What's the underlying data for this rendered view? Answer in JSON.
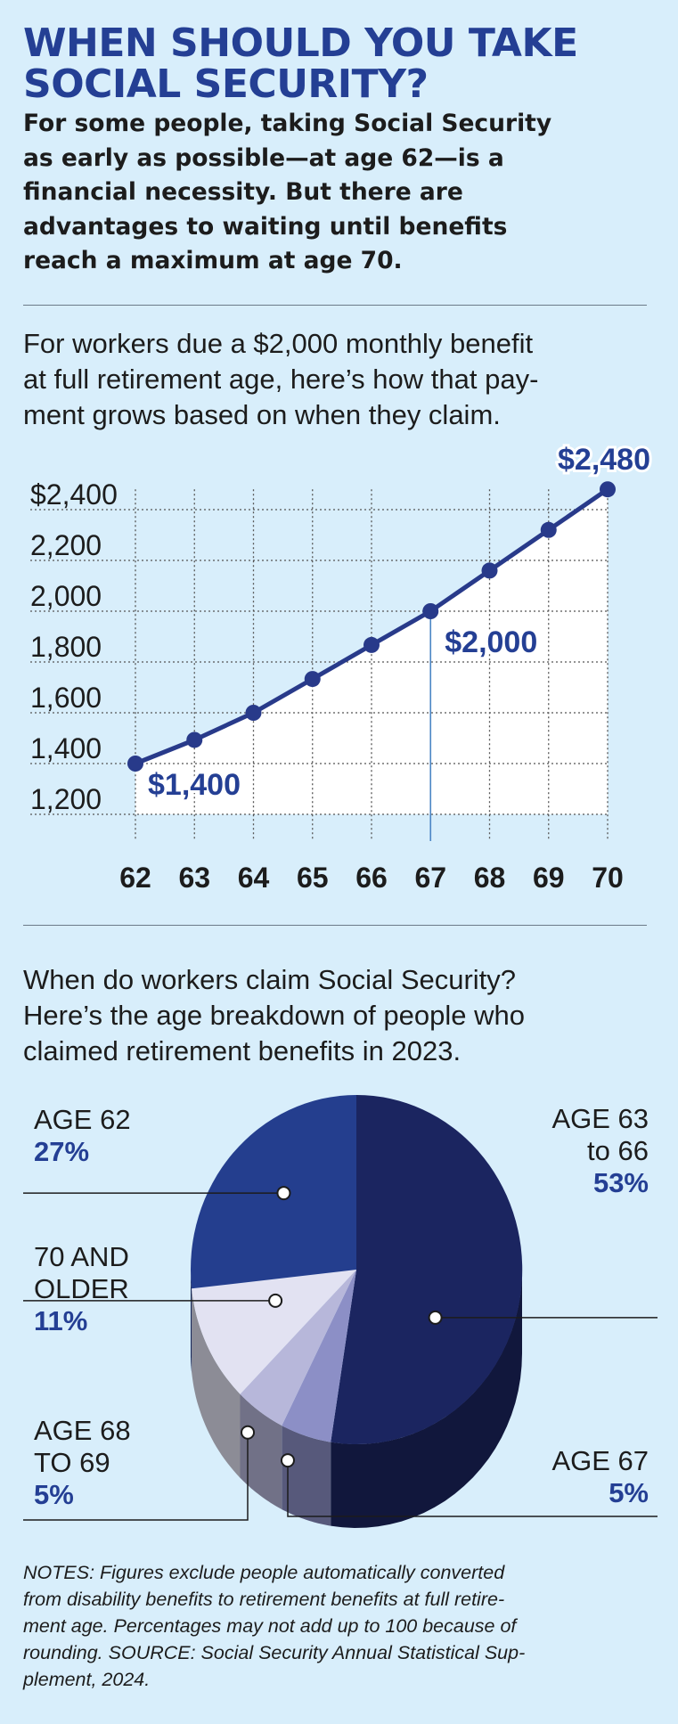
{
  "header": {
    "title_lines": [
      "WHEN SHOULD YOU TAKE",
      "SOCIAL SECURITY?"
    ],
    "dek_lines": [
      "For some people, taking Social Security",
      "as early as possible—at age 62—is a",
      "financial necessity. But there are",
      "advantages to waiting until benefits",
      "reach a maximum at age 70."
    ]
  },
  "line_intro_lines": [
    "For workers due a $2,000 monthly benefit",
    "at full retirement age, here’s how that pay-",
    "ment grows based on when they claim."
  ],
  "pie_intro_lines": [
    "When do workers claim Social Security?",
    "Here’s the age breakdown of people who",
    "claimed retirement benefits in 2023."
  ],
  "notes_lines": [
    "NOTES: Figures exclude people automatically converted",
    "from disability benefits to retirement benefits at full retire-",
    "ment age. Percentages may not add up to 100 because of",
    "rounding. SOURCE: Social Security Annual Statistical Sup-",
    "plement, 2024."
  ],
  "colors": {
    "accent": "#243f94",
    "line": "#283a8a",
    "background": "#d8eefb",
    "text": "#1c1c1c"
  },
  "chart_data": [
    {
      "type": "line",
      "x": [
        62,
        63,
        64,
        65,
        66,
        67,
        68,
        69,
        70
      ],
      "y": [
        1400,
        1493,
        1600,
        1733,
        1867,
        2000,
        2160,
        2320,
        2480
      ],
      "y_ticks": [
        "1,200",
        "1,400",
        "1,600",
        "1,800",
        "2,000",
        "2,200",
        "$2,400"
      ],
      "y_tick_values": [
        1200,
        1400,
        1600,
        1800,
        2000,
        2200,
        2400
      ],
      "ylim": [
        1200,
        2480
      ],
      "x_tick_labels": [
        "62",
        "63",
        "64",
        "65",
        "66",
        "67",
        "68",
        "69",
        "70"
      ],
      "grid": true,
      "annotations": [
        {
          "x": 62,
          "text": "$1,400"
        },
        {
          "x": 67,
          "text": "$2,000"
        },
        {
          "x": 70,
          "text": "$2,480"
        }
      ]
    },
    {
      "type": "pie",
      "style": "3d",
      "slices": [
        {
          "label_lines": [
            "AGE 63",
            "to 66"
          ],
          "value": 53,
          "value_label": "53%",
          "color": "#1b2560"
        },
        {
          "label_lines": [
            "AGE 67"
          ],
          "value": 5,
          "value_label": "5%",
          "color": "#8c8fc6"
        },
        {
          "label_lines": [
            "AGE 68",
            "TO 69"
          ],
          "value": 5,
          "value_label": "5%",
          "color": "#b7b7da"
        },
        {
          "label_lines": [
            "70 AND",
            "OLDER"
          ],
          "value": 11,
          "value_label": "11%",
          "color": "#e2e2f2"
        },
        {
          "label_lines": [
            "AGE 62"
          ],
          "value": 27,
          "value_label": "27%",
          "color": "#243e8e"
        }
      ]
    }
  ]
}
